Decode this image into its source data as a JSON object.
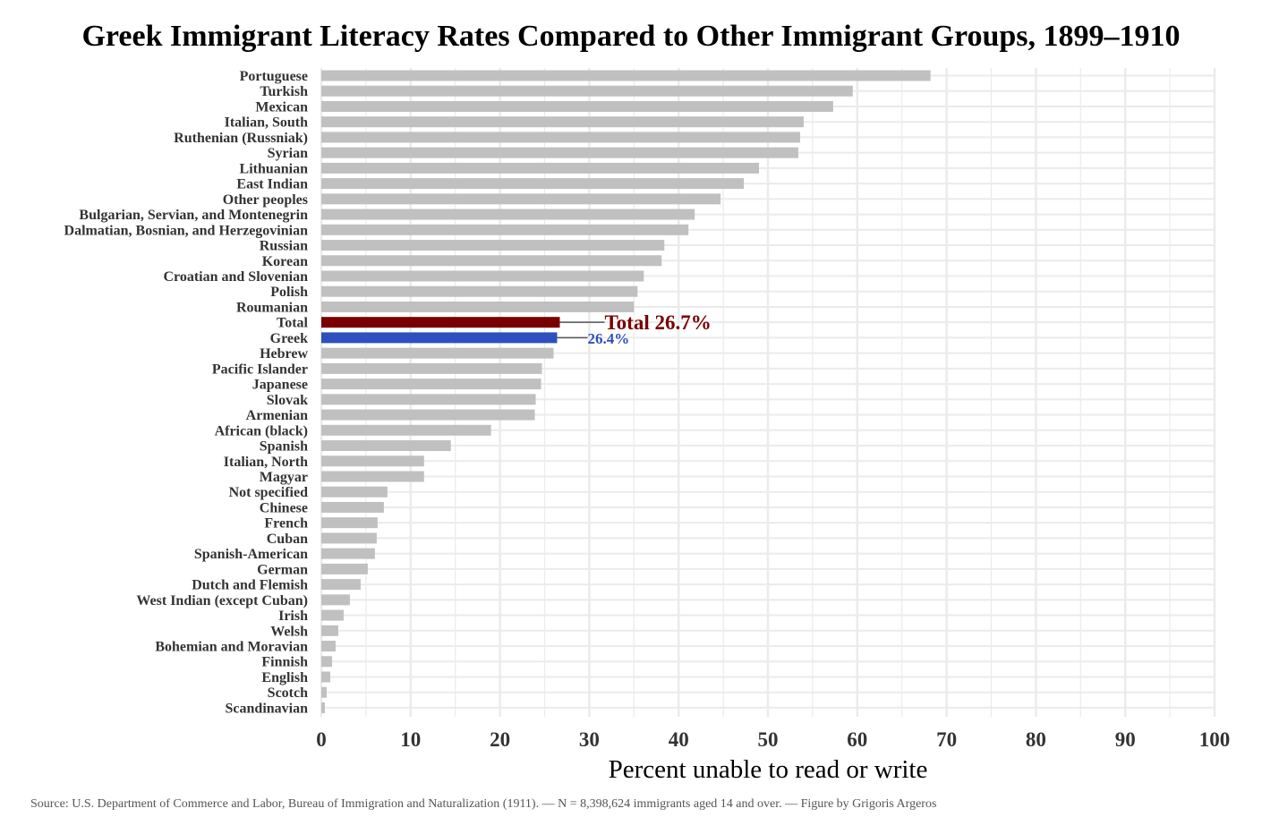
{
  "chart_data": {
    "type": "bar",
    "orientation": "horizontal",
    "title": "Greek Immigrant Literacy Rates Compared to Other Immigrant Groups, 1899–1910",
    "xlabel": "Percent unable to read or write",
    "ylabel": "",
    "xlim": [
      0,
      100
    ],
    "xticks": [
      "0",
      "10",
      "20",
      "30",
      "40",
      "50",
      "60",
      "70",
      "80",
      "90",
      "100"
    ],
    "grid": true,
    "categories": [
      "Portuguese",
      "Turkish",
      "Mexican",
      "Italian, South",
      "Ruthenian (Russniak)",
      "Syrian",
      "Lithuanian",
      "East Indian",
      "Other peoples",
      "Bulgarian, Servian, and Montenegrin",
      "Dalmatian, Bosnian, and Herzegovinian",
      "Russian",
      "Korean",
      "Croatian and Slovenian",
      "Polish",
      "Roumanian",
      "Total",
      "Greek",
      "Hebrew",
      "Pacific Islander",
      "Japanese",
      "Slovak",
      "Armenian",
      "African (black)",
      "Spanish",
      "Italian, North",
      "Magyar",
      "Not specified",
      "Chinese",
      "French",
      "Cuban",
      "Spanish-American",
      "German",
      "Dutch and Flemish",
      "West Indian (except Cuban)",
      "Irish",
      "Welsh",
      "Bohemian and Moravian",
      "Finnish",
      "English",
      "Scotch",
      "Scandinavian"
    ],
    "values": [
      68.2,
      59.5,
      57.3,
      54.0,
      53.6,
      53.4,
      49.0,
      47.3,
      44.7,
      41.8,
      41.1,
      38.4,
      38.1,
      36.1,
      35.4,
      35.0,
      26.7,
      26.4,
      26.0,
      24.7,
      24.6,
      24.0,
      23.9,
      19.0,
      14.5,
      11.5,
      11.5,
      7.4,
      7.0,
      6.3,
      6.2,
      6.0,
      5.2,
      4.4,
      3.2,
      2.5,
      1.9,
      1.6,
      1.2,
      1.0,
      0.6,
      0.4
    ],
    "highlight": {
      "Total": {
        "color": "#7a0000",
        "annotation": "Total 26.7%"
      },
      "Greek": {
        "color": "#2e4fbd",
        "annotation": "26.4%"
      }
    },
    "default_color": "#c0c0c0",
    "source": "Source: U.S. Department of Commerce and Labor, Bureau of Immigration and Naturalization (1911). — N = 8,398,624 immigrants aged 14 and over. — Figure by Grigoris Argeros"
  }
}
